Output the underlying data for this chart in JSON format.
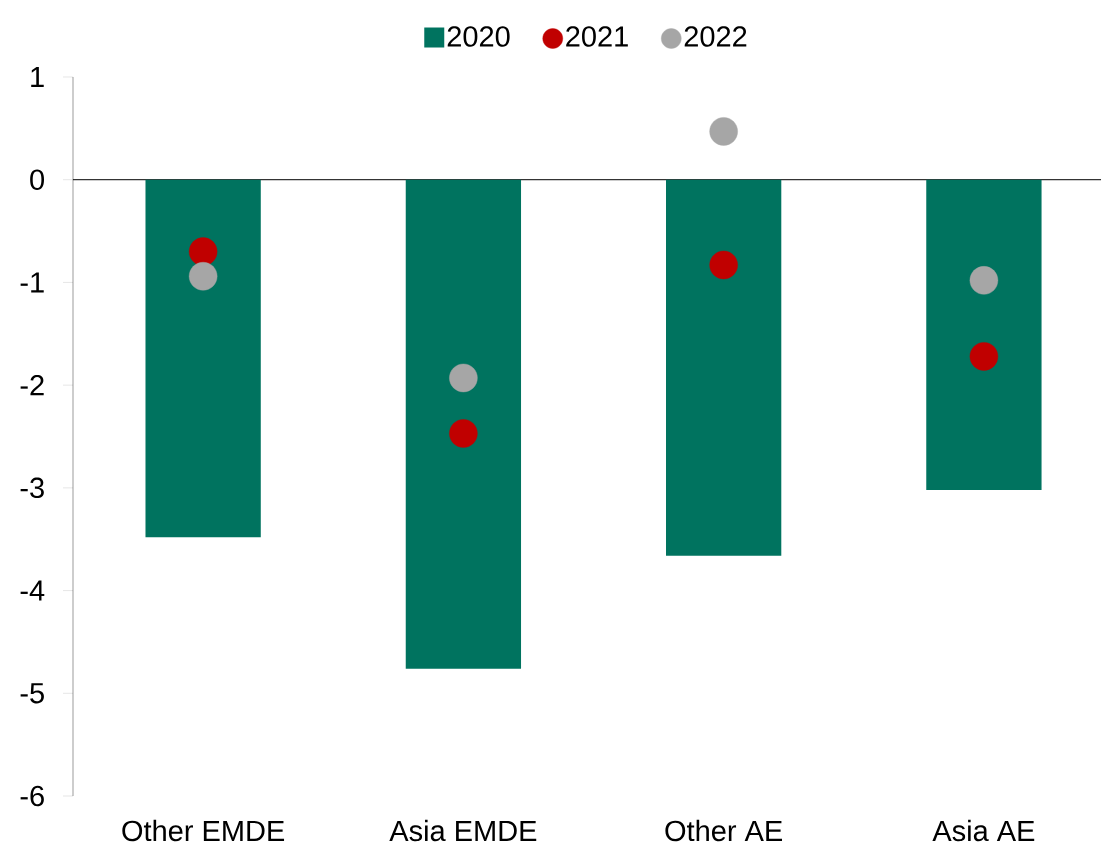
{
  "chart_data": {
    "type": "bar",
    "categories": [
      "Other EMDE",
      "Asia EMDE",
      "Other AE",
      "Asia AE"
    ],
    "series": [
      {
        "name": "2020",
        "color": "#00735f",
        "values": [
          -3.48,
          -4.76,
          -3.66,
          -3.02
        ]
      },
      {
        "name": "2021",
        "type": "scatter",
        "color": "#c00000",
        "values": [
          -0.7,
          -2.47,
          -0.83,
          -1.72
        ]
      },
      {
        "name": "2022",
        "type": "scatter",
        "color": "#a6a6a6",
        "values": [
          -0.94,
          -1.93,
          0.47,
          -0.98
        ]
      }
    ],
    "ylim": [
      -6,
      1
    ],
    "yticks": [
      -6,
      -5,
      -4,
      -3,
      -2,
      -1,
      0,
      1
    ],
    "legend": "top"
  }
}
